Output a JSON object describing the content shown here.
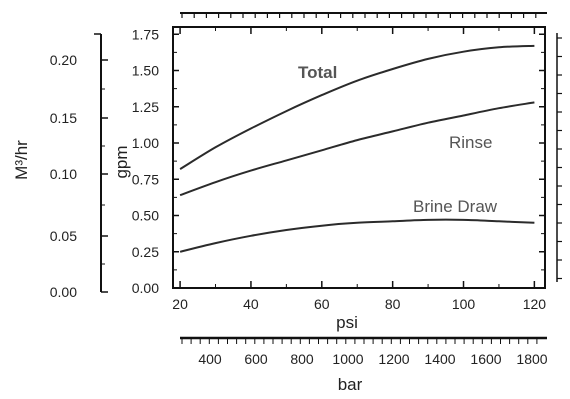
{
  "chart_data": {
    "type": "line",
    "title": "",
    "x": [
      20,
      30,
      40,
      50,
      60,
      70,
      80,
      90,
      100,
      110,
      120
    ],
    "xlabel": "psi",
    "ylabel": "gpm",
    "xlim": [
      18,
      123
    ],
    "ylim": [
      0,
      1.8
    ],
    "xticks": [
      20,
      40,
      60,
      80,
      100,
      120
    ],
    "yticks": [
      0.0,
      0.25,
      0.5,
      0.75,
      1.0,
      1.25,
      1.5,
      1.75
    ],
    "ytick_labels": [
      "0.00",
      "0.25",
      "0.50",
      "0.75",
      "1.00",
      "1.25",
      "1.50",
      "1.75"
    ],
    "grid": false,
    "series": [
      {
        "name": "Total",
        "values": [
          0.82,
          0.97,
          1.1,
          1.22,
          1.33,
          1.43,
          1.51,
          1.58,
          1.63,
          1.66,
          1.67
        ]
      },
      {
        "name": "Rinse",
        "values": [
          0.64,
          0.73,
          0.81,
          0.88,
          0.95,
          1.02,
          1.08,
          1.14,
          1.19,
          1.24,
          1.28
        ]
      },
      {
        "name": "Brine Draw",
        "values": [
          0.25,
          0.31,
          0.36,
          0.4,
          0.43,
          0.45,
          0.46,
          0.47,
          0.47,
          0.46,
          0.45
        ]
      }
    ],
    "secondary_y": {
      "label": "M³/hr",
      "ticks": [
        0.0,
        0.05,
        0.1,
        0.15,
        0.2
      ],
      "tick_labels": [
        "0.00",
        "0.05",
        "0.10",
        "0.15",
        "0.20"
      ],
      "ylim": [
        0.0,
        0.2
      ]
    },
    "secondary_x": {
      "label": "bar",
      "ticks": [
        400,
        600,
        800,
        1000,
        1200,
        1400,
        1600,
        1800
      ],
      "tick_labels": [
        "400",
        "600",
        "800",
        "1000",
        "1200",
        "1400",
        "1600",
        "1800"
      ]
    }
  },
  "colors": {
    "line": "#2b2b2b",
    "axis": "#111111",
    "label": "#555555"
  }
}
